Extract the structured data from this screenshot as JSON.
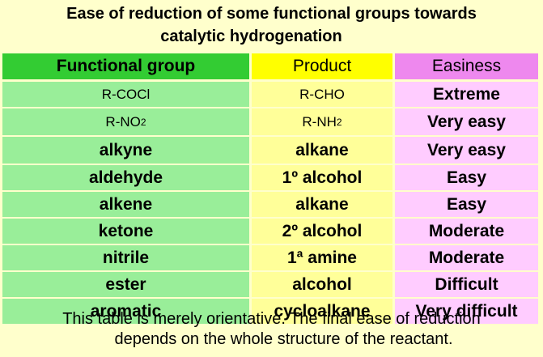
{
  "title": {
    "line1": "Ease of reduction of some functional groups towards",
    "line2": "catalytic hydrogenation"
  },
  "table": {
    "headers": {
      "group": "Functional group",
      "product": "Product",
      "ease": "Easiness"
    },
    "rows": [
      {
        "group": "R-COCl",
        "product": "R-CHO",
        "ease": "Extreme"
      },
      {
        "group_main": "R-NO",
        "group_sub": "2",
        "product_main": "R-NH",
        "product_sub": "2",
        "ease": "Very easy"
      },
      {
        "group": "alkyne",
        "product": "alkane",
        "ease": "Very easy"
      },
      {
        "group": "aldehyde",
        "product": "1º alcohol",
        "ease": "Easy"
      },
      {
        "group": "alkene",
        "product": "alkane",
        "ease": "Easy"
      },
      {
        "group": "ketone",
        "product": "2º alcohol",
        "ease": "Moderate"
      },
      {
        "group": "nitrile",
        "product": "1ª amine",
        "ease": "Moderate"
      },
      {
        "group": "ester",
        "product": "alcohol",
        "ease": "Difficult"
      },
      {
        "group": "aromatic",
        "product": "cycloalkane",
        "ease": "Very difficult"
      }
    ]
  },
  "footnote": {
    "line1": "This table is merely orientative. The final ease of reduction",
    "line2": "depends on the whole structure of the reactant."
  },
  "colors": {
    "background": "#ffffcc",
    "group_header": "#33cc33",
    "group_cell": "#99ee99",
    "product_header": "#ffff00",
    "product_cell": "#ffff99",
    "ease_header": "#ee88ee",
    "ease_cell": "#ffccff"
  }
}
